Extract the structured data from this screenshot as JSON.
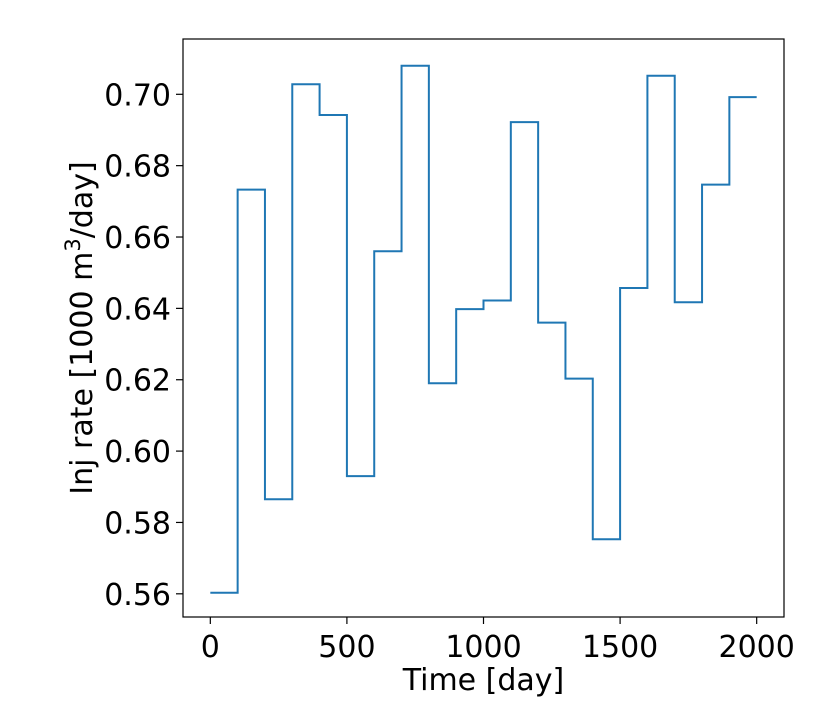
{
  "chart_data": {
    "type": "line",
    "step": "post",
    "xlabel": "Time [day]",
    "ylabel": "Inj rate [1000 m³/day]",
    "ylabel_parts": {
      "before": "Inj rate [1000 m",
      "sup": "3",
      "after": "/day]"
    },
    "xlim": [
      -100,
      2100
    ],
    "ylim": [
      0.5535,
      0.7155
    ],
    "xticks": [
      0,
      500,
      1000,
      1500,
      2000
    ],
    "xtick_labels": [
      "0",
      "500",
      "1000",
      "1500",
      "2000"
    ],
    "yticks": [
      0.56,
      0.58,
      0.6,
      0.62,
      0.64,
      0.66,
      0.68,
      0.7
    ],
    "ytick_labels": [
      "0.56",
      "0.58",
      "0.60",
      "0.62",
      "0.64",
      "0.66",
      "0.68",
      "0.70"
    ],
    "grid": false,
    "series": [
      {
        "color": "#1f77b4",
        "x": [
          0,
          100,
          200,
          300,
          400,
          500,
          600,
          700,
          800,
          900,
          1000,
          1100,
          1200,
          1300,
          1400,
          1500,
          1600,
          1700,
          1800,
          1900,
          2000
        ],
        "y": [
          0.5603,
          0.6733,
          0.5865,
          0.7028,
          0.6942,
          0.593,
          0.656,
          0.708,
          0.619,
          0.6398,
          0.6422,
          0.6922,
          0.636,
          0.6203,
          0.5753,
          0.6457,
          0.7052,
          0.6417,
          0.6747,
          0.6992,
          0.6992
        ]
      }
    ]
  }
}
